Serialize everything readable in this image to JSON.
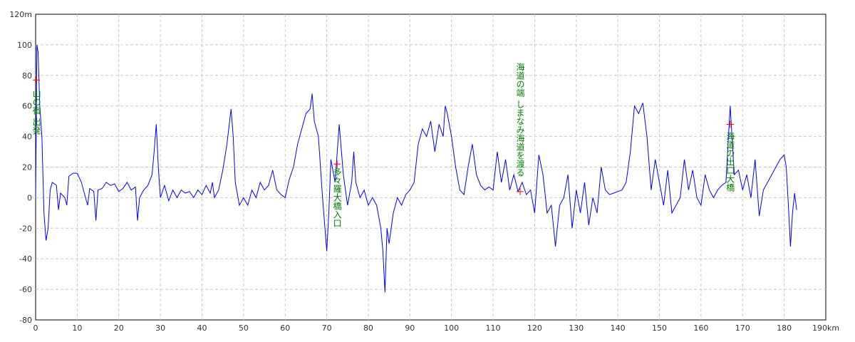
{
  "chart_data": {
    "type": "line",
    "x": [
      0,
      0.3,
      0.6,
      1,
      1.5,
      2,
      2.5,
      3,
      3.5,
      4,
      5,
      5.5,
      6,
      7,
      7.5,
      8,
      9,
      10,
      11,
      12,
      12.5,
      13,
      14,
      14.5,
      15,
      16,
      17,
      18,
      19,
      20,
      21,
      22,
      23,
      24,
      24.5,
      25,
      26,
      27,
      28,
      28.5,
      29,
      29.5,
      30,
      31,
      32,
      33,
      34,
      35,
      36,
      37,
      38,
      39,
      40,
      41,
      42,
      42.5,
      43,
      44,
      45,
      46,
      47,
      47.5,
      48,
      49,
      50,
      51,
      52,
      53,
      54,
      55,
      56,
      57,
      58,
      59,
      60,
      61,
      62,
      63,
      64,
      65,
      66,
      66.5,
      67,
      68,
      69,
      70,
      70.5,
      71,
      72,
      73,
      74,
      75,
      76,
      76.5,
      77,
      78,
      79,
      80,
      81,
      82,
      83,
      83.5,
      84,
      84.5,
      85,
      86,
      87,
      88,
      89,
      90,
      91,
      92,
      93,
      94,
      95,
      96,
      97,
      98,
      98.5,
      99,
      100,
      101,
      102,
      103,
      104,
      105,
      106,
      107,
      108,
      109,
      110,
      111,
      112,
      113,
      114,
      115,
      116,
      117,
      118,
      119,
      120,
      121,
      122,
      123,
      124,
      125,
      126,
      127,
      128,
      129,
      130,
      131,
      132,
      133,
      134,
      135,
      136,
      137,
      138,
      139,
      140,
      141,
      142,
      143,
      144,
      145,
      146,
      147,
      148,
      149,
      150,
      151,
      152,
      153,
      154,
      155,
      156,
      157,
      158,
      159,
      160,
      161,
      162,
      163,
      164,
      165,
      166,
      167,
      168,
      169,
      170,
      171,
      172,
      173,
      174,
      175,
      176,
      177,
      178,
      179,
      180,
      180.5,
      181,
      181.5,
      182,
      182.5,
      183
    ],
    "values": [
      0,
      100,
      95,
      60,
      40,
      -10,
      -28,
      -20,
      5,
      10,
      8,
      -8,
      3,
      0,
      -5,
      14,
      16,
      16,
      10,
      0,
      -5,
      6,
      4,
      -15,
      5,
      6,
      10,
      8,
      9,
      4,
      6,
      10,
      5,
      7,
      -15,
      0,
      5,
      8,
      15,
      30,
      48,
      20,
      0,
      8,
      -2,
      5,
      0,
      5,
      3,
      4,
      0,
      5,
      2,
      8,
      3,
      10,
      0,
      5,
      18,
      35,
      58,
      40,
      10,
      -5,
      0,
      -5,
      5,
      0,
      10,
      5,
      8,
      18,
      5,
      2,
      0,
      12,
      20,
      35,
      45,
      55,
      58,
      68,
      50,
      40,
      0,
      -35,
      -10,
      25,
      10,
      48,
      15,
      -5,
      10,
      30,
      10,
      0,
      5,
      -5,
      0,
      -5,
      -20,
      -35,
      -62,
      -20,
      -30,
      -10,
      0,
      -5,
      2,
      5,
      10,
      35,
      45,
      40,
      50,
      30,
      48,
      40,
      60,
      55,
      40,
      20,
      5,
      2,
      20,
      35,
      15,
      8,
      5,
      7,
      5,
      30,
      10,
      25,
      5,
      15,
      4,
      10,
      2,
      5,
      -10,
      28,
      15,
      -10,
      -5,
      -32,
      -5,
      0,
      15,
      -20,
      5,
      -10,
      10,
      -18,
      0,
      -10,
      20,
      5,
      2,
      3,
      4,
      5,
      10,
      30,
      60,
      55,
      62,
      40,
      5,
      25,
      10,
      -5,
      18,
      -10,
      -5,
      0,
      25,
      5,
      18,
      0,
      -5,
      15,
      5,
      0,
      5,
      8,
      10,
      60,
      15,
      18,
      5,
      15,
      0,
      25,
      -12,
      5,
      10,
      15,
      20,
      25,
      28,
      20,
      -5,
      -32,
      -10,
      3,
      -8
    ],
    "color": "#0000ff",
    "xlim": [
      0,
      190
    ],
    "ylim": [
      -80,
      120
    ],
    "xticks": [
      0,
      10,
      20,
      30,
      40,
      50,
      60,
      70,
      80,
      90,
      100,
      110,
      120,
      130,
      140,
      150,
      160,
      170,
      180,
      {
        "value": 190,
        "label": "190km"
      }
    ],
    "yticks": [
      -80,
      -60,
      -40,
      -20,
      0,
      20,
      40,
      60,
      80,
      100,
      {
        "value": 120,
        "label": "120m"
      }
    ],
    "grid": true,
    "annotations": [
      {
        "text": "山の宿 出発",
        "x": 0.2,
        "y": 77
      },
      {
        "text": "多々羅大橋入口",
        "x": 72.5,
        "y": 22
      },
      {
        "text": "海道の端 しまなみ海道を渡る",
        "x": 116.5,
        "y": 4
      },
      {
        "text": "海道の出口大橋",
        "x": 167,
        "y": 48
      }
    ]
  }
}
